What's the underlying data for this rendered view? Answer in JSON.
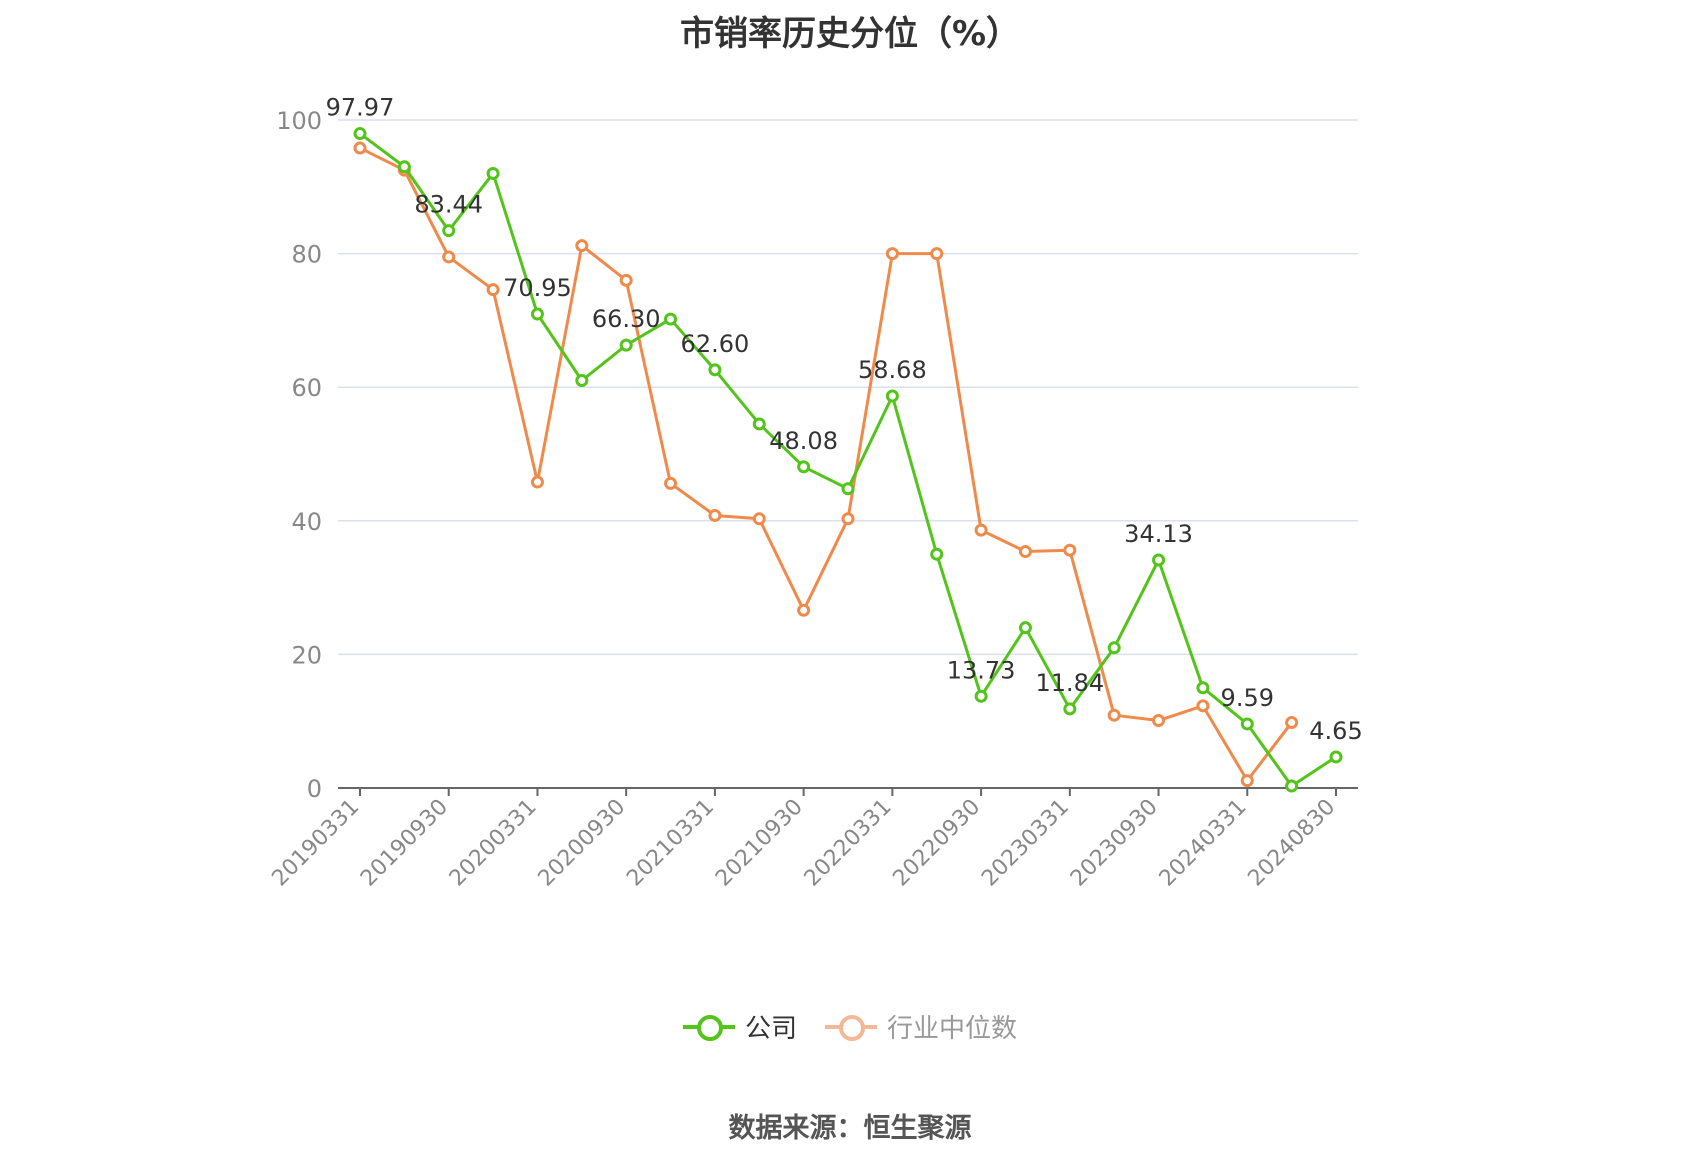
{
  "chart_data": {
    "type": "line",
    "title": "市销率历史分位（%）",
    "x": [
      "20190331",
      "20190630",
      "20190930",
      "20191231",
      "20200331",
      "20200630",
      "20200930",
      "20201231",
      "20210331",
      "20210630",
      "20210930",
      "20211231",
      "20220331",
      "20220630",
      "20220930",
      "20221231",
      "20230331",
      "20230630",
      "20230930",
      "20231231",
      "20240331",
      "20240630",
      "20240830"
    ],
    "x_tick_labels": [
      "20190331",
      "20190930",
      "20200331",
      "20200930",
      "20210331",
      "20210930",
      "20220331",
      "20220930",
      "20230331",
      "20230930",
      "20240331",
      "20240830"
    ],
    "y_ticks": [
      0,
      20,
      40,
      60,
      80,
      100
    ],
    "ylim": [
      0,
      100
    ],
    "grid": "horizontal",
    "legend_position": "bottom",
    "series": [
      {
        "name": "公司",
        "color": "#52c41a",
        "values": [
          97.97,
          93.0,
          83.44,
          92.0,
          70.95,
          61.0,
          66.3,
          70.2,
          62.6,
          54.5,
          48.08,
          44.8,
          58.68,
          35.0,
          13.73,
          24.0,
          11.84,
          21.0,
          34.13,
          15.0,
          9.59,
          0.3,
          4.65
        ],
        "labels": [
          "97.97",
          null,
          "83.44",
          null,
          "70.95",
          null,
          "66.30",
          null,
          "62.60",
          null,
          "48.08",
          null,
          "58.68",
          null,
          "13.73",
          null,
          "11.84",
          null,
          "34.13",
          null,
          "9.59",
          null,
          "4.65"
        ]
      },
      {
        "name": "行业中位数",
        "color": "#f08a4b",
        "values": [
          95.8,
          92.5,
          79.5,
          74.6,
          45.8,
          81.2,
          76.0,
          45.6,
          40.8,
          40.3,
          26.6,
          40.3,
          80.0,
          80.0,
          38.6,
          35.4,
          35.6,
          10.9,
          10.1,
          12.3,
          1.1,
          9.8,
          null
        ]
      }
    ]
  },
  "source": "数据来源：恒生聚源"
}
